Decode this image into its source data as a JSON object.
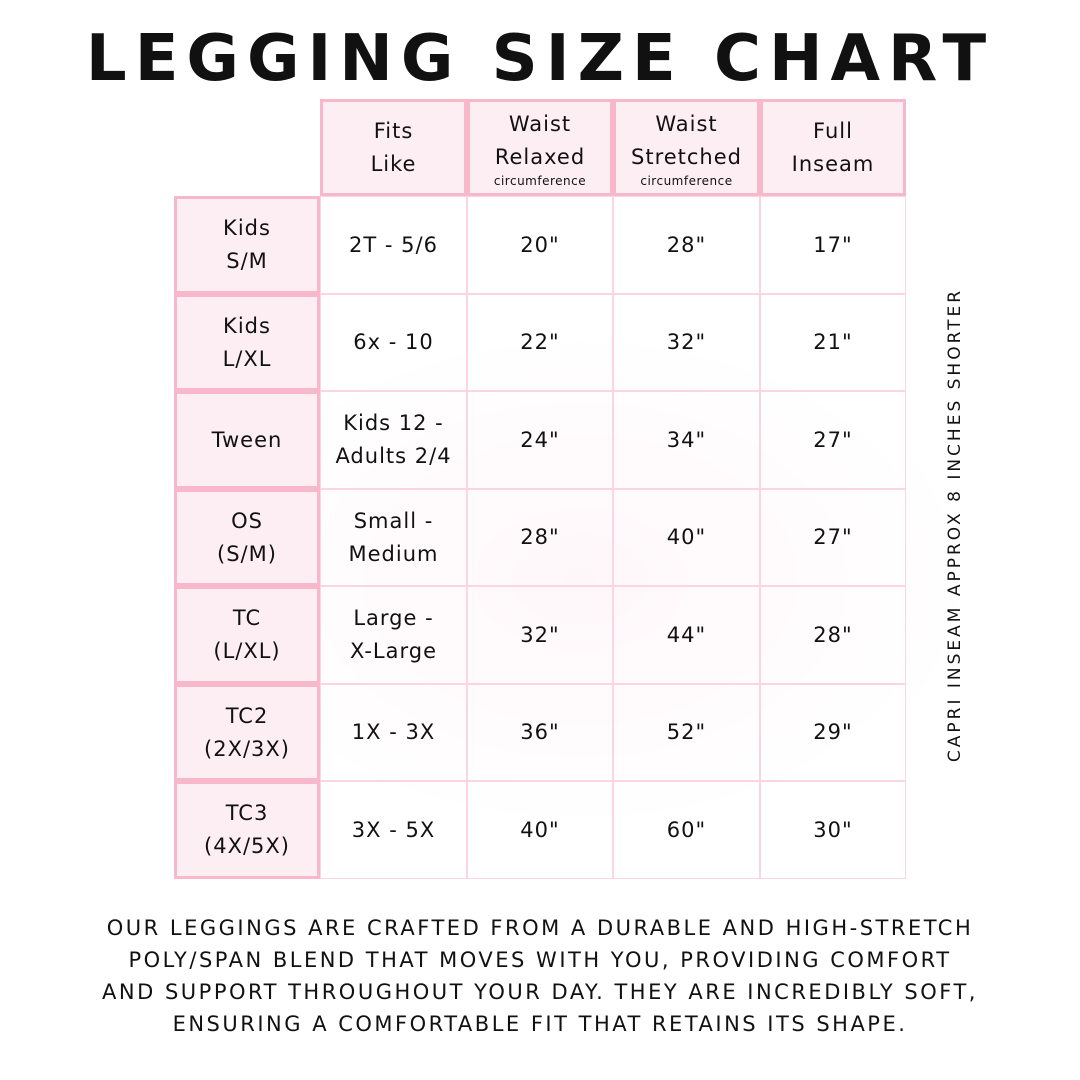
{
  "title": "LEGGING SIZE CHART",
  "columns": [
    {
      "line1": "Fits",
      "line2": "Like",
      "sub": ""
    },
    {
      "line1": "Waist",
      "line2": "Relaxed",
      "sub": "circumference"
    },
    {
      "line1": "Waist",
      "line2": "Stretched",
      "sub": "circumference"
    },
    {
      "line1": "Full",
      "line2": "Inseam",
      "sub": ""
    }
  ],
  "rows": [
    {
      "size1": "Kids",
      "size2": "S/M",
      "fits1": "2T - 5/6",
      "fits2": "",
      "relaxed": "20\"",
      "stretched": "28\"",
      "inseam": "17\""
    },
    {
      "size1": "Kids",
      "size2": "L/XL",
      "fits1": "6x - 10",
      "fits2": "",
      "relaxed": "22\"",
      "stretched": "32\"",
      "inseam": "21\""
    },
    {
      "size1": "Tween",
      "size2": "",
      "fits1": "Kids 12 -",
      "fits2": "Adults 2/4",
      "relaxed": "24\"",
      "stretched": "34\"",
      "inseam": "27\""
    },
    {
      "size1": "OS",
      "size2": "(S/M)",
      "fits1": "Small -",
      "fits2": "Medium",
      "relaxed": "28\"",
      "stretched": "40\"",
      "inseam": "27\""
    },
    {
      "size1": "TC",
      "size2": "(L/XL)",
      "fits1": "Large -",
      "fits2": "X-Large",
      "relaxed": "32\"",
      "stretched": "44\"",
      "inseam": "28\""
    },
    {
      "size1": "TC2",
      "size2": "(2X/3X)",
      "fits1": "1X - 3X",
      "fits2": "",
      "relaxed": "36\"",
      "stretched": "52\"",
      "inseam": "29\""
    },
    {
      "size1": "TC3",
      "size2": "(4X/5X)",
      "fits1": "3X - 5X",
      "fits2": "",
      "relaxed": "40\"",
      "stretched": "60\"",
      "inseam": "30\""
    }
  ],
  "side_note": "CAPRI INSEAM APPROX 8 INCHES SHORTER",
  "footer": [
    "Our leggings are crafted from a durable and high-stretch",
    "poly/span blend that moves with you, providing comfort",
    "and support throughout your day. They are incredibly soft,",
    "ensuring a comfortable fit that retains its shape."
  ],
  "colors": {
    "border": "#f7b8cc",
    "header_bg": "#fdeef3"
  }
}
